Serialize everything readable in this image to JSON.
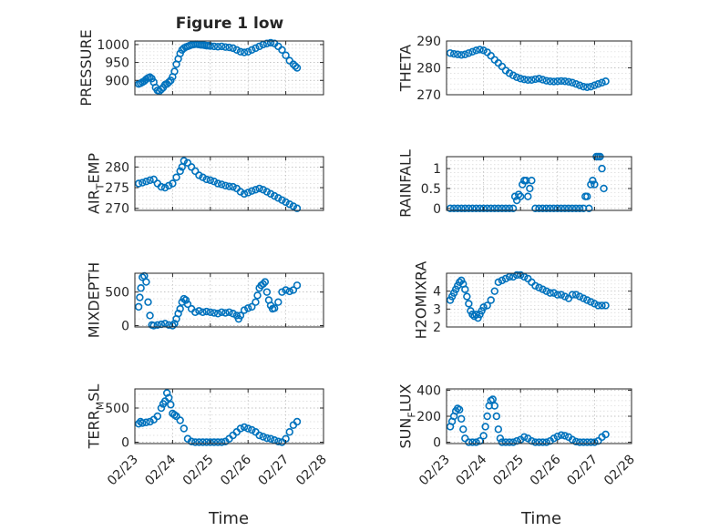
{
  "figure": {
    "title": "Figure 1 low"
  },
  "colors": {
    "marker": "#0072BD",
    "axis": "#262626",
    "grid": "#b8b8b8"
  },
  "chart_data": [
    {
      "type": "scatter",
      "ylabel": "PRESSURE",
      "ylim": [
        860,
        1010
      ],
      "yticks": [
        900,
        950,
        1000
      ],
      "xlim": [
        "02/23",
        "02/28"
      ],
      "grid": true,
      "series": [
        {
          "x": [
            23.1,
            23.15,
            23.2,
            23.25,
            23.3,
            23.35,
            23.4,
            23.45,
            23.5,
            23.55,
            23.6,
            23.65,
            23.7,
            23.75,
            23.8,
            23.85,
            23.9,
            23.95,
            24.0,
            24.05,
            24.1,
            24.15,
            24.2,
            24.25,
            24.3,
            24.35,
            24.4,
            24.45,
            24.5,
            24.55,
            24.6,
            24.65,
            24.7,
            24.75,
            24.8,
            24.85,
            24.9,
            24.95,
            25.0,
            25.1,
            25.2,
            25.3,
            25.4,
            25.5,
            25.6,
            25.7,
            25.8,
            25.9,
            26.0,
            26.1,
            26.2,
            26.3,
            26.4,
            26.5,
            26.6,
            26.7,
            26.8,
            26.9,
            27.0,
            27.1,
            27.2,
            27.25,
            27.3
          ],
          "y": [
            890,
            892,
            895,
            898,
            903,
            907,
            909,
            905,
            895,
            880,
            872,
            870,
            875,
            880,
            888,
            890,
            895,
            900,
            910,
            925,
            945,
            960,
            975,
            985,
            990,
            993,
            995,
            997,
            999,
            1000,
            1001,
            1001,
            1000,
            999,
            999,
            998,
            997,
            997,
            996,
            995,
            994,
            995,
            993,
            992,
            990,
            985,
            980,
            978,
            980,
            985,
            990,
            995,
            1000,
            1003,
            1005,
            1003,
            995,
            985,
            970,
            955,
            945,
            940,
            935
          ]
        }
      ]
    },
    {
      "type": "scatter",
      "ylabel": "THETA",
      "ylim": [
        270,
        290
      ],
      "yticks": [
        270,
        280,
        290
      ],
      "xlim": [
        "02/23",
        "02/28"
      ],
      "grid": true,
      "series": [
        {
          "x": [
            23.1,
            23.2,
            23.3,
            23.4,
            23.5,
            23.6,
            23.7,
            23.8,
            23.9,
            24.0,
            24.1,
            24.2,
            24.3,
            24.4,
            24.5,
            24.6,
            24.7,
            24.8,
            24.9,
            25.0,
            25.1,
            25.2,
            25.3,
            25.4,
            25.5,
            25.6,
            25.7,
            25.8,
            25.9,
            26.0,
            26.1,
            26.2,
            26.3,
            26.4,
            26.5,
            26.6,
            26.7,
            26.8,
            26.9,
            27.0,
            27.1,
            27.2,
            27.3
          ],
          "y": [
            285.5,
            285.2,
            285.0,
            284.8,
            285.0,
            285.5,
            286.0,
            286.5,
            286.8,
            286.5,
            285.8,
            284.5,
            283.0,
            281.8,
            280.5,
            279.0,
            278.0,
            277.2,
            276.5,
            276.0,
            275.7,
            275.5,
            275.5,
            275.8,
            276.0,
            275.6,
            275.2,
            275.0,
            274.9,
            275.0,
            275.1,
            275.0,
            274.8,
            274.5,
            274.0,
            273.5,
            273.0,
            272.8,
            273.0,
            273.5,
            274.0,
            274.5,
            275.0
          ]
        }
      ]
    },
    {
      "type": "scatter",
      "ylabel": "AIR_TEMP",
      "ylabel_main": "AIR",
      "ylabel_sub": "T",
      "ylabel_rest": "EMP",
      "ylim": [
        269.5,
        282.5
      ],
      "yticks": [
        270,
        275,
        280
      ],
      "xlim": [
        "02/23",
        "02/28"
      ],
      "grid": true,
      "series": [
        {
          "x": [
            23.1,
            23.2,
            23.3,
            23.4,
            23.5,
            23.6,
            23.7,
            23.8,
            23.9,
            24.0,
            24.1,
            24.2,
            24.25,
            24.3,
            24.4,
            24.5,
            24.6,
            24.7,
            24.8,
            24.9,
            25.0,
            25.1,
            25.2,
            25.3,
            25.4,
            25.5,
            25.6,
            25.7,
            25.8,
            25.9,
            26.0,
            26.1,
            26.2,
            26.3,
            26.4,
            26.5,
            26.6,
            26.7,
            26.8,
            26.9,
            27.0,
            27.1,
            27.2,
            27.3
          ],
          "y": [
            276.0,
            276.2,
            276.5,
            276.8,
            277.0,
            276.0,
            275.2,
            275.0,
            275.5,
            276.0,
            277.5,
            279.0,
            280.0,
            281.5,
            281.0,
            280.0,
            279.0,
            278.0,
            277.5,
            277.0,
            276.8,
            276.5,
            276.0,
            275.8,
            275.5,
            275.3,
            275.2,
            274.8,
            274.0,
            273.5,
            273.8,
            274.2,
            274.5,
            274.8,
            274.5,
            274.0,
            273.5,
            273.0,
            272.5,
            272.0,
            271.5,
            271.0,
            270.5,
            270.0
          ]
        }
      ]
    },
    {
      "type": "scatter",
      "ylabel": "RAINFALL",
      "ylim": [
        -0.05,
        1.3
      ],
      "yticks": [
        0,
        0.5,
        1
      ],
      "ytick_labels": [
        "0",
        "0.5",
        "1"
      ],
      "xlim": [
        "02/23",
        "02/28"
      ],
      "grid": true,
      "series": [
        {
          "x": [
            23.1,
            23.2,
            23.3,
            23.4,
            23.5,
            23.6,
            23.7,
            23.8,
            23.9,
            24.0,
            24.1,
            24.2,
            24.3,
            24.4,
            24.5,
            24.6,
            24.7,
            24.8,
            24.85,
            24.9,
            24.95,
            25.0,
            25.05,
            25.1,
            25.15,
            25.2,
            25.25,
            25.3,
            25.4,
            25.5,
            25.6,
            25.7,
            25.8,
            25.9,
            26.0,
            26.1,
            26.2,
            26.3,
            26.4,
            26.5,
            26.6,
            26.7,
            26.75,
            26.8,
            26.85,
            26.9,
            26.95,
            27.0,
            27.05,
            27.1,
            27.15,
            27.2,
            27.25
          ],
          "y": [
            0,
            0,
            0,
            0,
            0,
            0,
            0,
            0,
            0,
            0,
            0,
            0,
            0,
            0,
            0,
            0,
            0,
            0,
            0.3,
            0.2,
            0.35,
            0.3,
            0.6,
            0.7,
            0.7,
            0.3,
            0.5,
            0.7,
            0,
            0,
            0,
            0,
            0,
            0,
            0,
            0,
            0,
            0,
            0,
            0,
            0,
            0,
            0.3,
            0.3,
            0,
            0.6,
            0.7,
            0.6,
            1.3,
            1.3,
            1.3,
            1.0,
            0.5
          ]
        }
      ]
    },
    {
      "type": "scatter",
      "ylabel": "MIXDEPTH",
      "ylim": [
        -20,
        780
      ],
      "yticks": [
        0,
        500
      ],
      "xlim": [
        "02/23",
        "02/28"
      ],
      "grid": true,
      "series": [
        {
          "x": [
            23.1,
            23.13,
            23.16,
            23.2,
            23.25,
            23.3,
            23.35,
            23.4,
            23.45,
            23.5,
            23.6,
            23.7,
            23.8,
            23.9,
            24.0,
            24.05,
            24.1,
            24.15,
            24.2,
            24.25,
            24.3,
            24.35,
            24.4,
            24.5,
            24.6,
            24.7,
            24.8,
            24.9,
            25.0,
            25.1,
            25.2,
            25.3,
            25.4,
            25.5,
            25.6,
            25.7,
            25.75,
            25.8,
            25.9,
            26.0,
            26.1,
            26.2,
            26.25,
            26.3,
            26.35,
            26.4,
            26.45,
            26.5,
            26.55,
            26.6,
            26.65,
            26.7,
            26.8,
            26.9,
            27.0,
            27.1,
            27.2,
            27.3
          ],
          "y": [
            280,
            420,
            560,
            720,
            740,
            650,
            350,
            150,
            10,
            0,
            10,
            20,
            30,
            10,
            0,
            30,
            100,
            180,
            250,
            350,
            400,
            380,
            320,
            250,
            200,
            220,
            200,
            210,
            200,
            190,
            180,
            200,
            190,
            200,
            180,
            150,
            100,
            150,
            230,
            260,
            280,
            350,
            450,
            560,
            600,
            620,
            650,
            500,
            380,
            300,
            250,
            260,
            350,
            500,
            530,
            510,
            530,
            600
          ]
        }
      ]
    },
    {
      "type": "scatter",
      "ylabel": "H2OMIXRA",
      "ylim": [
        2,
        5
      ],
      "yticks": [
        2,
        3,
        4
      ],
      "xlim": [
        "02/23",
        "02/28"
      ],
      "grid": true,
      "series": [
        {
          "x": [
            23.1,
            23.15,
            23.2,
            23.25,
            23.3,
            23.35,
            23.4,
            23.45,
            23.5,
            23.55,
            23.6,
            23.65,
            23.7,
            23.75,
            23.8,
            23.85,
            23.9,
            23.95,
            24.0,
            24.1,
            24.2,
            24.3,
            24.4,
            24.5,
            24.6,
            24.7,
            24.8,
            24.9,
            25.0,
            25.1,
            25.2,
            25.3,
            25.4,
            25.5,
            25.6,
            25.7,
            25.8,
            25.9,
            26.0,
            26.1,
            26.2,
            26.3,
            26.4,
            26.5,
            26.6,
            26.7,
            26.8,
            26.9,
            27.0,
            27.1,
            27.2,
            27.3
          ],
          "y": [
            3.5,
            3.7,
            3.9,
            4.1,
            4.3,
            4.5,
            4.6,
            4.4,
            4.1,
            3.7,
            3.3,
            2.9,
            2.7,
            2.6,
            2.7,
            2.5,
            2.7,
            2.9,
            3.1,
            3.2,
            3.5,
            4.0,
            4.5,
            4.6,
            4.7,
            4.8,
            4.8,
            4.9,
            4.9,
            4.8,
            4.7,
            4.5,
            4.3,
            4.2,
            4.1,
            4.0,
            3.9,
            3.9,
            3.8,
            3.8,
            3.7,
            3.6,
            3.8,
            3.8,
            3.7,
            3.6,
            3.5,
            3.4,
            3.3,
            3.2,
            3.2,
            3.2
          ]
        }
      ]
    },
    {
      "type": "scatter",
      "ylabel": "TERR_MSL",
      "ylabel_main": "TERR",
      "ylabel_sub": "M",
      "ylabel_rest": "SL",
      "ylim": [
        -20,
        780
      ],
      "yticks": [
        0,
        500
      ],
      "xlim": [
        "02/23",
        "02/28"
      ],
      "grid": true,
      "series": [
        {
          "x": [
            23.1,
            23.15,
            23.2,
            23.3,
            23.4,
            23.5,
            23.6,
            23.7,
            23.75,
            23.8,
            23.85,
            23.9,
            23.95,
            24.0,
            24.05,
            24.1,
            24.2,
            24.3,
            24.4,
            24.5,
            24.6,
            24.7,
            24.8,
            24.9,
            25.0,
            25.1,
            25.2,
            25.3,
            25.4,
            25.5,
            25.6,
            25.7,
            25.8,
            25.9,
            26.0,
            26.1,
            26.2,
            26.3,
            26.4,
            26.5,
            26.6,
            26.7,
            26.8,
            26.9,
            27.0,
            27.1,
            27.2,
            27.3
          ],
          "y": [
            270,
            300,
            280,
            290,
            300,
            330,
            380,
            500,
            560,
            600,
            720,
            650,
            550,
            420,
            400,
            380,
            320,
            200,
            50,
            10,
            0,
            0,
            0,
            0,
            0,
            0,
            0,
            0,
            10,
            50,
            100,
            150,
            200,
            220,
            200,
            180,
            150,
            100,
            80,
            60,
            50,
            30,
            10,
            0,
            50,
            150,
            250,
            300
          ]
        }
      ]
    },
    {
      "type": "scatter",
      "ylabel": "SUN_FLUX",
      "ylabel_main": "SUN",
      "ylabel_sub": "F",
      "ylabel_rest": "LUX",
      "ylim": [
        -10,
        410
      ],
      "yticks": [
        0,
        200,
        400
      ],
      "xlim": [
        "02/23",
        "02/28"
      ],
      "grid": true,
      "series": [
        {
          "x": [
            23.1,
            23.15,
            23.2,
            23.25,
            23.3,
            23.35,
            23.4,
            23.45,
            23.5,
            23.6,
            23.7,
            23.8,
            23.9,
            24.0,
            24.05,
            24.1,
            24.15,
            24.2,
            24.25,
            24.3,
            24.35,
            24.4,
            24.45,
            24.5,
            24.6,
            24.7,
            24.8,
            24.9,
            25.0,
            25.1,
            25.2,
            25.3,
            25.4,
            25.5,
            25.6,
            25.7,
            25.8,
            25.9,
            26.0,
            26.1,
            26.2,
            26.3,
            26.4,
            26.5,
            26.6,
            26.7,
            26.8,
            26.9,
            27.0,
            27.1,
            27.2,
            27.3
          ],
          "y": [
            120,
            160,
            200,
            240,
            260,
            250,
            180,
            100,
            30,
            0,
            0,
            0,
            10,
            50,
            120,
            200,
            280,
            320,
            330,
            280,
            200,
            100,
            30,
            0,
            0,
            0,
            0,
            10,
            20,
            40,
            30,
            10,
            0,
            0,
            0,
            0,
            10,
            30,
            45,
            55,
            50,
            40,
            20,
            5,
            0,
            0,
            0,
            0,
            0,
            10,
            40,
            60
          ]
        }
      ]
    }
  ],
  "xaxis": {
    "tick_labels": [
      "02/23",
      "02/24",
      "02/25",
      "02/26",
      "02/27",
      "02/28"
    ],
    "tick_values": [
      23,
      24,
      25,
      26,
      27,
      28
    ],
    "label_left": "Time",
    "label_right": "Time"
  }
}
